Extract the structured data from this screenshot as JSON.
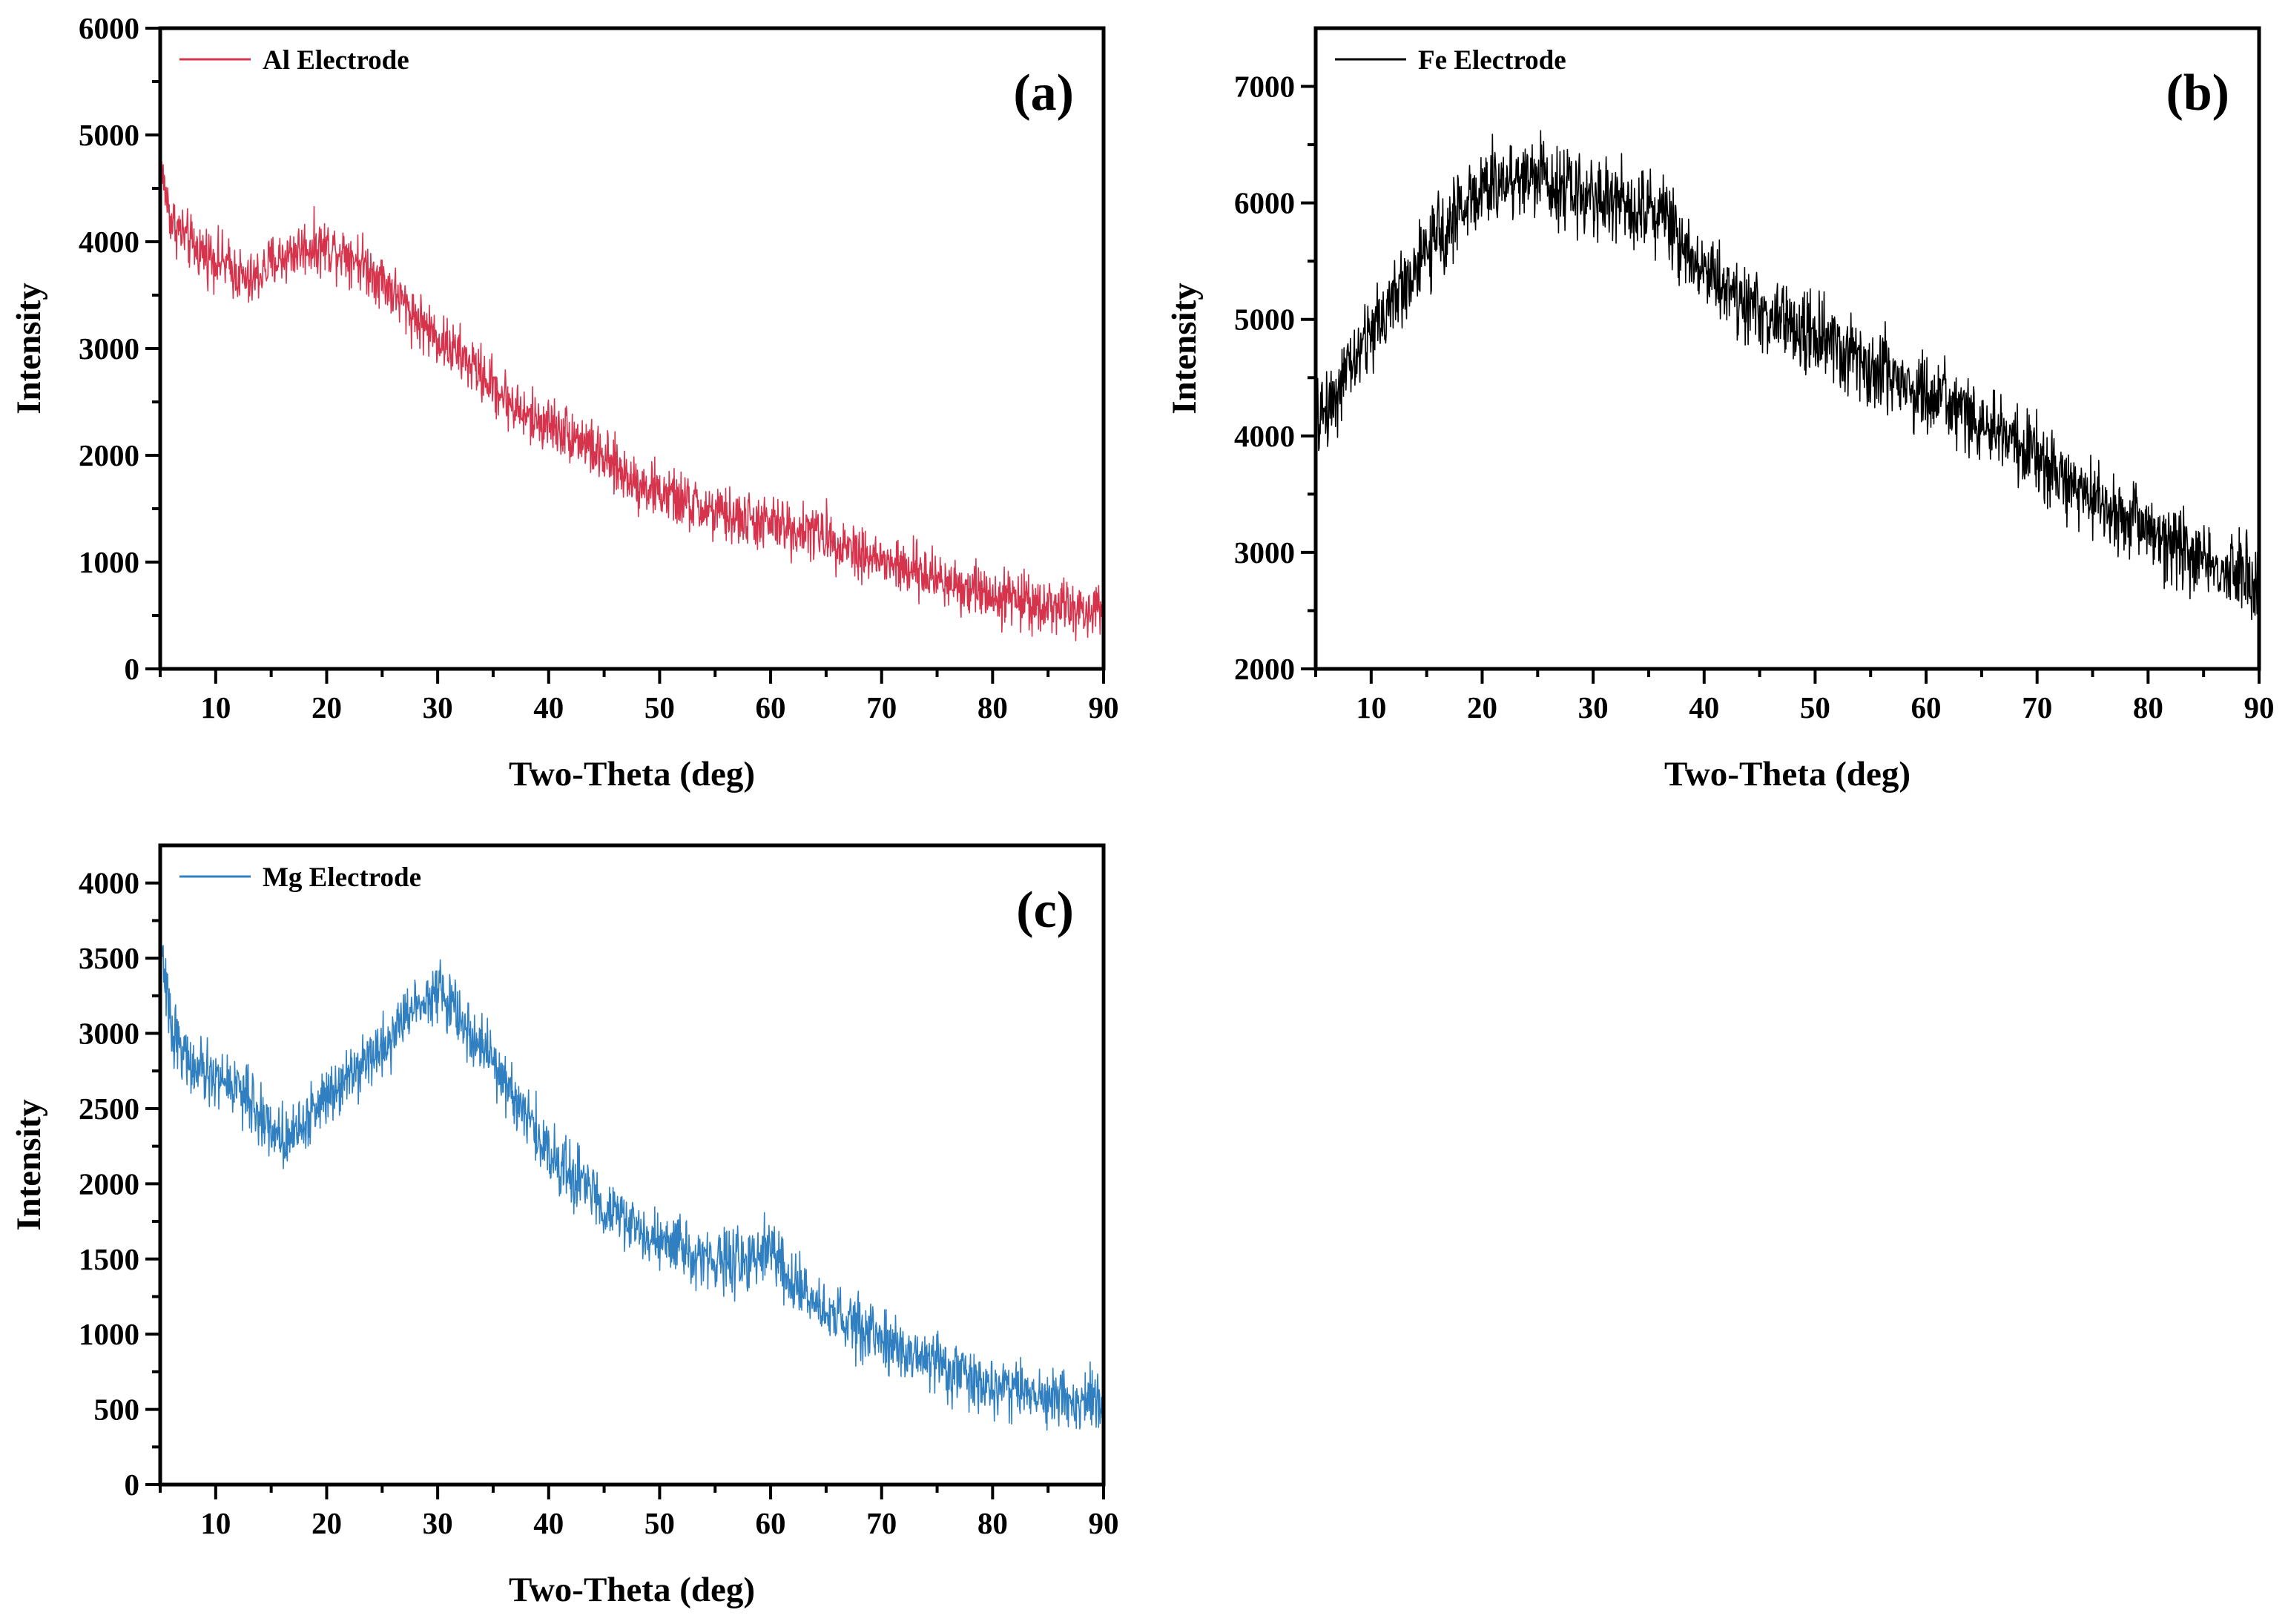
{
  "chart_data": [
    {
      "type": "line",
      "panel": "(a)",
      "legend": "Al Electrode",
      "color": "#d6334d",
      "xlabel": "Two-Theta (deg)",
      "ylabel": "Intensity",
      "xlim": [
        5,
        90
      ],
      "ylim": [
        0,
        6000
      ],
      "xticks": [
        10,
        20,
        30,
        40,
        50,
        60,
        70,
        80,
        90
      ],
      "yticks": [
        0,
        1000,
        2000,
        3000,
        4000,
        5000,
        6000
      ],
      "noise": 130,
      "series": [
        {
          "name": "Al Electrode",
          "x": [
            5,
            6,
            8,
            10,
            12,
            13,
            15,
            18,
            20,
            22,
            25,
            28,
            30,
            33,
            36,
            38,
            40,
            43,
            45,
            48,
            50,
            55,
            60,
            63,
            65,
            68,
            70,
            75,
            80,
            85,
            90
          ],
          "y": [
            4700,
            4200,
            3950,
            3850,
            3700,
            3600,
            3800,
            3950,
            3950,
            3900,
            3650,
            3300,
            3100,
            2850,
            2550,
            2350,
            2300,
            2150,
            1950,
            1750,
            1650,
            1450,
            1350,
            1300,
            1250,
            1100,
            1000,
            850,
            700,
            600,
            500
          ]
        }
      ]
    },
    {
      "type": "line",
      "panel": "(b)",
      "legend": "Fe Electrode",
      "color": "#000000",
      "xlabel": "Two-Theta (deg)",
      "ylabel": "Intensity",
      "xlim": [
        5,
        90
      ],
      "ylim": [
        2000,
        7500
      ],
      "xticks": [
        10,
        20,
        30,
        40,
        50,
        60,
        70,
        80,
        90
      ],
      "yticks": [
        2000,
        3000,
        4000,
        5000,
        6000,
        7000
      ],
      "noise": 170,
      "series": [
        {
          "name": "Fe Electrode",
          "x": [
            5,
            7,
            10,
            13,
            16,
            19,
            22,
            25,
            28,
            30,
            33,
            36,
            38,
            40,
            45,
            50,
            55,
            60,
            65,
            70,
            75,
            80,
            85,
            90
          ],
          "y": [
            4100,
            4400,
            4900,
            5300,
            5700,
            6050,
            6200,
            6250,
            6100,
            6050,
            6000,
            5950,
            5650,
            5450,
            5050,
            4850,
            4600,
            4350,
            4100,
            3800,
            3450,
            3200,
            2950,
            2700
          ]
        }
      ]
    },
    {
      "type": "line",
      "panel": "(c)",
      "legend": "Mg Electrode",
      "color": "#2f7fc1",
      "xlabel": "Two-Theta (deg)",
      "ylabel": "Intensity",
      "xlim": [
        5,
        90
      ],
      "ylim": [
        0,
        4250
      ],
      "xticks": [
        10,
        20,
        30,
        40,
        50,
        60,
        70,
        80,
        90
      ],
      "yticks": [
        0,
        500,
        1000,
        1500,
        2000,
        2500,
        3000,
        3500,
        4000
      ],
      "noise": 100,
      "series": [
        {
          "name": "Mg Electrode",
          "x": [
            5,
            6,
            8,
            10,
            12,
            14,
            16,
            18,
            20,
            22,
            25,
            28,
            30,
            32,
            35,
            38,
            40,
            43,
            46,
            50,
            55,
            58,
            60,
            62,
            65,
            70,
            75,
            80,
            85,
            90
          ],
          "y": [
            3550,
            3050,
            2750,
            2700,
            2650,
            2450,
            2300,
            2400,
            2600,
            2750,
            2900,
            3200,
            3300,
            3100,
            2800,
            2450,
            2200,
            2000,
            1800,
            1600,
            1500,
            1450,
            1600,
            1300,
            1150,
            950,
            800,
            650,
            580,
            530
          ]
        }
      ]
    }
  ]
}
